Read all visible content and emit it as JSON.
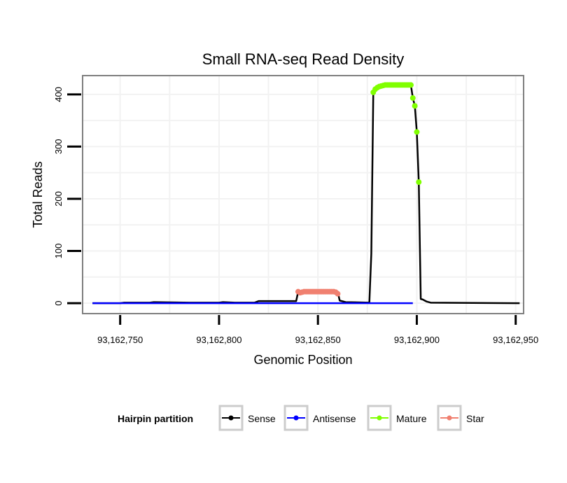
{
  "chart_data": {
    "type": "line",
    "title": "Small RNA-seq Read Density",
    "xlabel": "Genomic Position",
    "ylabel": "Total Reads",
    "xlim": [
      93162731,
      93162954
    ],
    "ylim": [
      -20,
      436
    ],
    "x_ticks": [
      93162750,
      93162800,
      93162850,
      93162900,
      93162950
    ],
    "x_tick_labels": [
      "93,162,750",
      "93,162,800",
      "93,162,850",
      "93,162,900",
      "93,162,950"
    ],
    "y_ticks": [
      0,
      100,
      200,
      300,
      400
    ],
    "y_tick_labels": [
      "0",
      "100",
      "200",
      "300",
      "400"
    ],
    "grid": true,
    "legend": {
      "title": "Hairpin partition",
      "position": "bottom",
      "entries": [
        {
          "name": "Sense",
          "color": "#000000"
        },
        {
          "name": "Antisense",
          "color": "#0000ff"
        },
        {
          "name": "Mature",
          "color": "#80ff00"
        },
        {
          "name": "Star",
          "color": "#f08070"
        }
      ]
    },
    "series": [
      {
        "name": "Sense",
        "color": "#000000",
        "points": [
          [
            93162736,
            0
          ],
          [
            93162750,
            0
          ],
          [
            93162752,
            1
          ],
          [
            93162765,
            1
          ],
          [
            93162767,
            2
          ],
          [
            93162785,
            1
          ],
          [
            93162800,
            1
          ],
          [
            93162802,
            2
          ],
          [
            93162808,
            1
          ],
          [
            93162818,
            1
          ],
          [
            93162820,
            4
          ],
          [
            93162839,
            4
          ],
          [
            93162840,
            22
          ],
          [
            93162860,
            22
          ],
          [
            93162861,
            5
          ],
          [
            93162864,
            2
          ],
          [
            93162876,
            1
          ],
          [
            93162877,
            95
          ],
          [
            93162878,
            404
          ],
          [
            93162879,
            410
          ],
          [
            93162880,
            413
          ],
          [
            93162882,
            416
          ],
          [
            93162884,
            418
          ],
          [
            93162897,
            418
          ],
          [
            93162898,
            393
          ],
          [
            93162899,
            378
          ],
          [
            93162900,
            328
          ],
          [
            93162901,
            232
          ],
          [
            93162902,
            8
          ],
          [
            93162903,
            7
          ],
          [
            93162905,
            3
          ],
          [
            93162907,
            1
          ],
          [
            93162950,
            0
          ],
          [
            93162952,
            0
          ]
        ]
      },
      {
        "name": "Antisense",
        "color": "#0000ff",
        "points": [
          [
            93162736,
            0
          ],
          [
            93162898,
            0
          ]
        ]
      },
      {
        "name": "Mature",
        "color": "#80ff00",
        "points": [
          [
            93162878,
            404
          ],
          [
            93162879,
            410
          ],
          [
            93162880,
            413
          ],
          [
            93162881,
            415
          ],
          [
            93162882,
            416
          ],
          [
            93162883,
            417
          ],
          [
            93162884,
            418
          ],
          [
            93162885,
            418
          ],
          [
            93162886,
            418
          ],
          [
            93162887,
            418
          ],
          [
            93162888,
            418
          ],
          [
            93162889,
            418
          ],
          [
            93162890,
            418
          ],
          [
            93162891,
            418
          ],
          [
            93162892,
            418
          ],
          [
            93162893,
            418
          ],
          [
            93162894,
            418
          ],
          [
            93162895,
            418
          ],
          [
            93162896,
            418
          ],
          [
            93162897,
            418
          ],
          [
            93162898,
            393
          ],
          [
            93162899,
            378
          ],
          [
            93162900,
            328
          ],
          [
            93162901,
            232
          ]
        ]
      },
      {
        "name": "Star",
        "color": "#f08070",
        "points": [
          [
            93162840,
            22
          ],
          [
            93162841,
            20
          ],
          [
            93162842,
            21
          ],
          [
            93162843,
            22
          ],
          [
            93162844,
            22
          ],
          [
            93162845,
            22
          ],
          [
            93162846,
            22
          ],
          [
            93162847,
            22
          ],
          [
            93162848,
            22
          ],
          [
            93162849,
            22
          ],
          [
            93162850,
            22
          ],
          [
            93162851,
            22
          ],
          [
            93162852,
            22
          ],
          [
            93162853,
            22
          ],
          [
            93162854,
            22
          ],
          [
            93162855,
            22
          ],
          [
            93162856,
            22
          ],
          [
            93162857,
            22
          ],
          [
            93162858,
            22
          ],
          [
            93162859,
            21
          ],
          [
            93162860,
            18
          ]
        ]
      }
    ]
  }
}
